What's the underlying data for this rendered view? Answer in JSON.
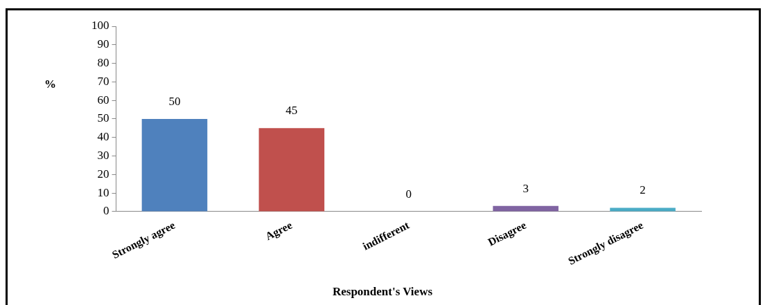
{
  "chart_data": {
    "type": "bar",
    "xlabel": "Respondent's Views",
    "ylabel": "%",
    "categories": [
      "Strongly agree",
      "Agree",
      "indifferent",
      "Disagree",
      "Strongly disagree"
    ],
    "values": [
      50,
      45,
      0,
      3,
      2
    ],
    "colors": [
      "#4f81bd",
      "#c0504d",
      "#9bbb59",
      "#8064a2",
      "#4bacc6"
    ],
    "ylim": [
      0,
      100
    ],
    "yticks": [
      0,
      10,
      20,
      30,
      40,
      50,
      60,
      70,
      80,
      90,
      100
    ],
    "grid": false,
    "legend": false,
    "data_labels": true
  }
}
